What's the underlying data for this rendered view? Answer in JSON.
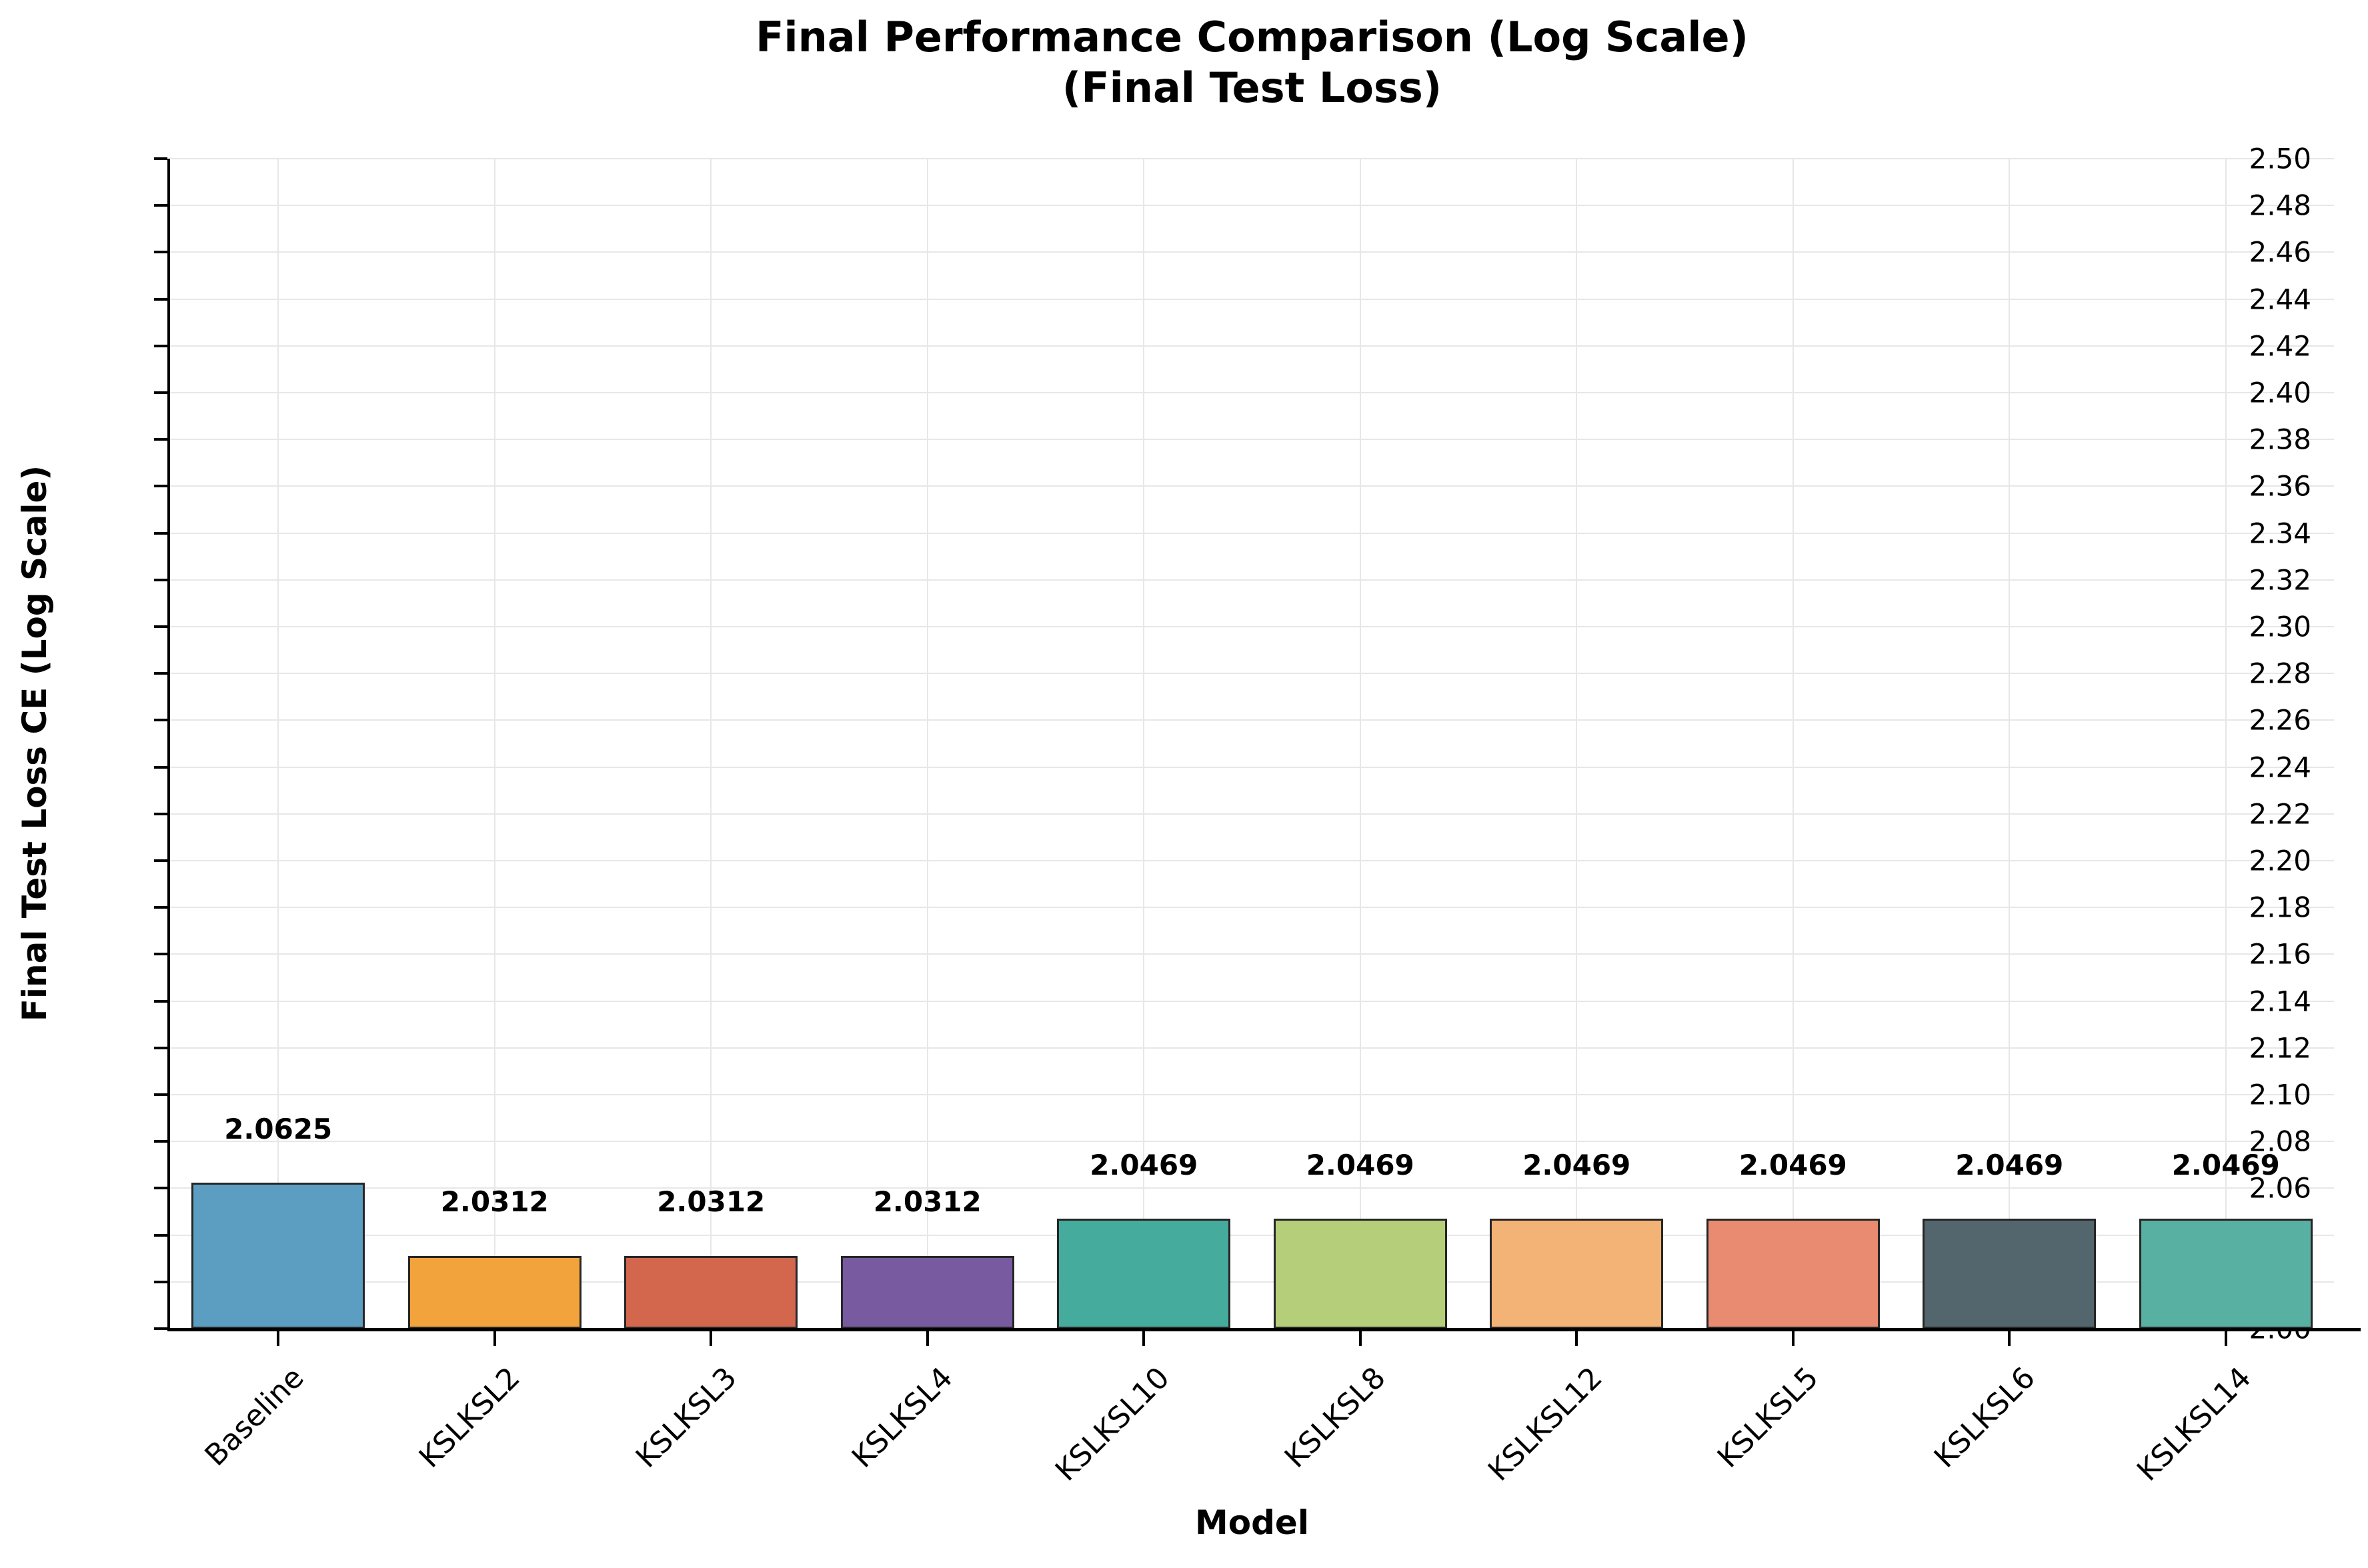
{
  "chart_data": {
    "type": "bar",
    "title": "Final Performance Comparison (Log Scale)",
    "subtitle": "(Final Test Loss)",
    "xlabel": "Model",
    "ylabel": "Final Test Loss CE (Log Scale)",
    "ylim": [
      2.0,
      2.5
    ],
    "ytick_step": 0.02,
    "ytick_labels": [
      "2.00",
      "2.02",
      "2.04",
      "2.06",
      "2.08",
      "2.10",
      "2.12",
      "2.14",
      "2.16",
      "2.18",
      "2.20",
      "2.22",
      "2.24",
      "2.26",
      "2.28",
      "2.30",
      "2.32",
      "2.34",
      "2.36",
      "2.38",
      "2.40",
      "2.42",
      "2.44",
      "2.46",
      "2.48",
      "2.50"
    ],
    "grid": true,
    "legend": "none",
    "categories": [
      "Baseline",
      "KSLKSL2",
      "KSLKSL3",
      "KSLKSL4",
      "KSLKSL10",
      "KSLKSL8",
      "KSLKSL12",
      "KSLKSL5",
      "KSLKSL6",
      "KSLKSL14"
    ],
    "values": [
      2.0625,
      2.0312,
      2.0312,
      2.0312,
      2.0469,
      2.0469,
      2.0469,
      2.0469,
      2.0469,
      2.0469
    ],
    "value_labels": [
      "2.0625",
      "2.0312",
      "2.0312",
      "2.0312",
      "2.0469",
      "2.0469",
      "2.0469",
      "2.0469",
      "2.0469",
      "2.0469"
    ],
    "bar_colors": [
      "#5B9EC1",
      "#F2A33B",
      "#D2674D",
      "#785AA0",
      "#45AB9D",
      "#B5CE7A",
      "#F4B376",
      "#E88B70",
      "#53666E",
      "#57B0A2"
    ],
    "bar_edge_color": "#262626",
    "grid_color": "#e7e7e7",
    "axis_color": "#000000",
    "background_color": "#ffffff"
  }
}
